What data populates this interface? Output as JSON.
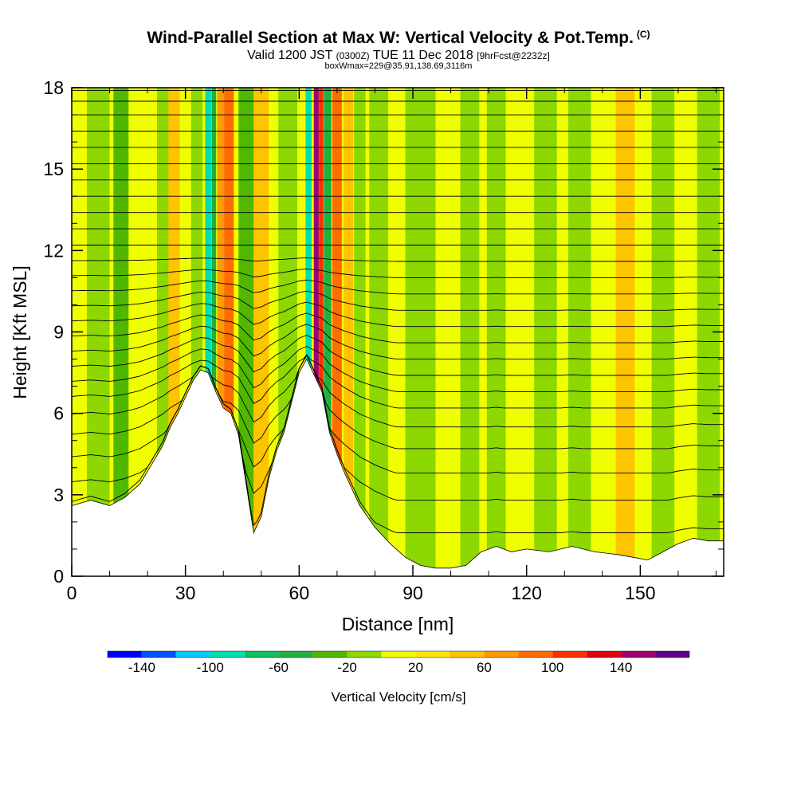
{
  "header": {
    "title": "Wind-Parallel Section at Max W: Vertical Velocity & Pot.Temp.",
    "copyright": "(C)",
    "valid_prefix": "Valid 1200 JST",
    "valid_utc": "(0300Z)",
    "valid_date": "TUE 11 Dec 2018",
    "forecast": "[9hrFcst@2232z]",
    "boxmax": "boxWmax=229@35.91,138.69,3116m"
  },
  "chart_data": {
    "type": "heatmap",
    "title": "Wind-Parallel Section at Max W: Vertical Velocity & Pot.Temp.",
    "xlabel": "Distance [nm]",
    "ylabel": "Height [Kft MSL]",
    "xlim": [
      0,
      172
    ],
    "ylim": [
      0,
      18
    ],
    "xticks": [
      0,
      30,
      60,
      90,
      120,
      150
    ],
    "yticks": [
      0,
      3,
      6,
      9,
      12,
      15,
      18
    ],
    "terrain": {
      "x": [
        0,
        5,
        10,
        14,
        18,
        21,
        24,
        26,
        28,
        30,
        32,
        34,
        36,
        38,
        40,
        42,
        44,
        46,
        48,
        50,
        52,
        54,
        56,
        58,
        60,
        62,
        64,
        66,
        68,
        70,
        72,
        74,
        76,
        78,
        80,
        84,
        88,
        92,
        96,
        100,
        104,
        108,
        112,
        116,
        120,
        126,
        132,
        138,
        144,
        148,
        152,
        156,
        160,
        164,
        168,
        172
      ],
      "height_kft": [
        2.6,
        2.8,
        2.6,
        2.9,
        3.4,
        4.1,
        4.8,
        5.5,
        6.0,
        6.6,
        7.2,
        7.6,
        7.5,
        6.8,
        6.2,
        6.0,
        5.2,
        3.4,
        1.6,
        2.2,
        3.6,
        4.6,
        5.3,
        6.4,
        7.5,
        8.0,
        7.4,
        6.8,
        5.3,
        4.5,
        3.8,
        3.2,
        2.6,
        2.2,
        1.8,
        1.2,
        0.7,
        0.4,
        0.3,
        0.3,
        0.4,
        0.9,
        1.1,
        0.9,
        1.0,
        0.9,
        1.1,
        0.9,
        0.8,
        0.7,
        0.6,
        0.9,
        1.2,
        1.4,
        1.3,
        1.3
      ]
    },
    "vertical_velocity_features_cm_s": [
      {
        "x_center": 7,
        "width": 6,
        "value": -20
      },
      {
        "x_center": 13,
        "width": 4,
        "value": -40
      },
      {
        "x_center": 25,
        "width": 5,
        "value": -20
      },
      {
        "x_center": 27,
        "width": 3,
        "value": 40
      },
      {
        "x_center": 33,
        "width": 3,
        "value": -20
      },
      {
        "x_center": 36,
        "width": 1.6,
        "value": -100
      },
      {
        "x_center": 37.5,
        "width": 1.2,
        "value": -60
      },
      {
        "x_center": 39.5,
        "width": 2.2,
        "value": 60
      },
      {
        "x_center": 41.5,
        "width": 2.5,
        "value": 80
      },
      {
        "x_center": 46,
        "width": 4,
        "value": -40
      },
      {
        "x_center": 50,
        "width": 4,
        "value": 40
      },
      {
        "x_center": 57,
        "width": 5,
        "value": -20
      },
      {
        "x_center": 62.5,
        "width": 1.6,
        "value": -100
      },
      {
        "x_center": 64.5,
        "width": 1.3,
        "value": 140
      },
      {
        "x_center": 65.8,
        "width": 1.2,
        "value": 100
      },
      {
        "x_center": 67.5,
        "width": 2.0,
        "value": -60
      },
      {
        "x_center": 70,
        "width": 2.5,
        "value": 80
      },
      {
        "x_center": 73,
        "width": 2.5,
        "value": 40
      },
      {
        "x_center": 76,
        "width": 3,
        "value": -20
      },
      {
        "x_center": 81,
        "width": 5,
        "value": -20
      },
      {
        "x_center": 92,
        "width": 8,
        "value": -20
      },
      {
        "x_center": 105,
        "width": 5,
        "value": -20
      },
      {
        "x_center": 112,
        "width": 5,
        "value": -20
      },
      {
        "x_center": 125,
        "width": 6,
        "value": -20
      },
      {
        "x_center": 134,
        "width": 6,
        "value": -20
      },
      {
        "x_center": 146,
        "width": 5,
        "value": 40
      },
      {
        "x_center": 156,
        "width": 6,
        "value": -20
      },
      {
        "x_center": 168,
        "width": 6,
        "value": -20
      }
    ],
    "potential_temperature_isentropes": {
      "count": 26,
      "levels_kft_far_field": [
        1.6,
        2.8,
        3.8,
        4.7,
        5.5,
        6.2,
        6.8,
        7.4,
        8.0,
        8.6,
        9.2,
        9.8,
        10.4,
        11.0,
        11.6,
        12.2,
        12.8,
        13.4,
        14.0,
        14.6,
        15.2,
        15.8,
        16.4,
        17.0,
        17.5,
        17.9
      ]
    },
    "colorbar": {
      "label": "Vertical Velocity [cm/s]",
      "tick_labels": [
        "-140",
        "-100",
        "-60",
        "-20",
        "20",
        "60",
        "100",
        "140"
      ],
      "bins": [
        -160,
        -140,
        -120,
        -100,
        -80,
        -60,
        -40,
        -20,
        0,
        20,
        40,
        60,
        80,
        100,
        120,
        140,
        160
      ],
      "colors": [
        "#0000ff",
        "#0055ff",
        "#00c8ff",
        "#00e0b0",
        "#10c060",
        "#20b040",
        "#50b800",
        "#8cd800",
        "#f0ff00",
        "#ffe800",
        "#ffc400",
        "#ff9b00",
        "#ff6c00",
        "#ff3000",
        "#e00010",
        "#a00070",
        "#600090"
      ]
    }
  }
}
